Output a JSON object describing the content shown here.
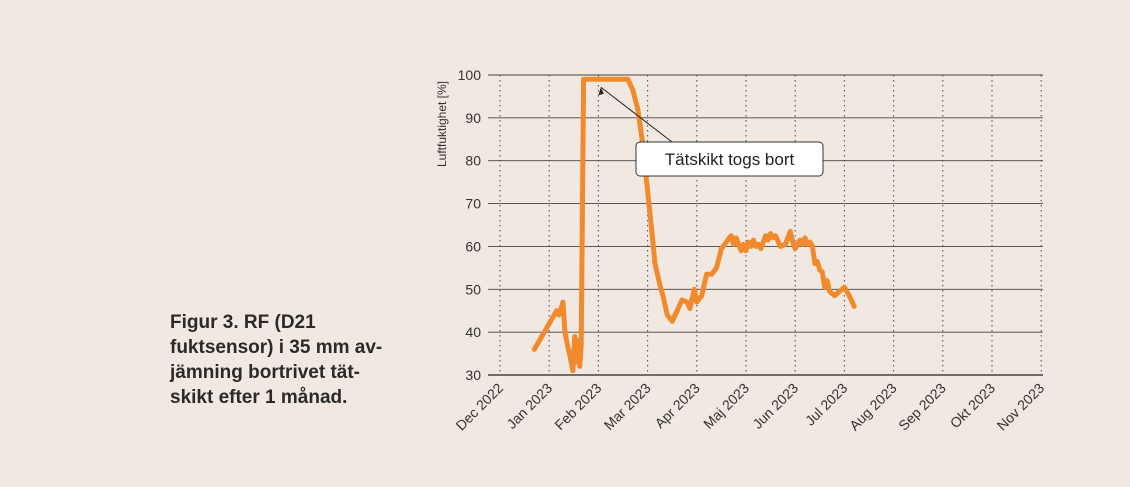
{
  "caption_lines": [
    "Figur 3. RF (D21",
    "fuktsensor) i 35 mm av-",
    "jämning bortrivet tät-",
    "skikt efter 1 månad."
  ],
  "chart_data": {
    "type": "line",
    "ylabel": "Luftfuktighet [%]",
    "ylim": [
      30,
      100
    ],
    "yticks": [
      30,
      40,
      50,
      60,
      70,
      80,
      90,
      100
    ],
    "xticks": [
      "Dec 2022",
      "Jan 2023",
      "Feb 2023",
      "Mar 2023",
      "Apr 2023",
      "Maj 2023",
      "Jun 2023",
      "Jul 2023",
      "Aug 2023",
      "Sep 2023",
      "Okt 2023",
      "Nov 2023"
    ],
    "grid": "horizontal solid, vertical dotted",
    "line_color": "#f08a2c",
    "annotation": {
      "text": "Tätskikt togs bort",
      "x": 2.05,
      "y": 99
    },
    "series": [
      {
        "points": [
          [
            0.7,
            36
          ],
          [
            0.85,
            39
          ],
          [
            1.0,
            42
          ],
          [
            1.15,
            45
          ],
          [
            1.2,
            44
          ],
          [
            1.28,
            47
          ],
          [
            1.32,
            40
          ],
          [
            1.38,
            36.5
          ],
          [
            1.42,
            34.5
          ],
          [
            1.48,
            31
          ],
          [
            1.52,
            39
          ],
          [
            1.56,
            33
          ],
          [
            1.59,
            38
          ],
          [
            1.62,
            32
          ],
          [
            1.65,
            37
          ],
          [
            1.7,
            99
          ],
          [
            1.9,
            99
          ],
          [
            2.2,
            99
          ],
          [
            2.4,
            99
          ],
          [
            2.6,
            99
          ],
          [
            2.7,
            96.5
          ],
          [
            2.8,
            92
          ],
          [
            2.9,
            84
          ],
          [
            3.0,
            73
          ],
          [
            3.1,
            62
          ],
          [
            3.15,
            56
          ],
          [
            3.25,
            51
          ],
          [
            3.3,
            49
          ],
          [
            3.4,
            44
          ],
          [
            3.5,
            42.5
          ],
          [
            3.6,
            45
          ],
          [
            3.7,
            47.5
          ],
          [
            3.8,
            47
          ],
          [
            3.86,
            45.5
          ],
          [
            3.95,
            50
          ],
          [
            4.0,
            47
          ],
          [
            4.1,
            48.5
          ],
          [
            4.2,
            53.5
          ],
          [
            4.3,
            53.5
          ],
          [
            4.4,
            55
          ],
          [
            4.5,
            59.5
          ],
          [
            4.6,
            61
          ],
          [
            4.7,
            62.5
          ],
          [
            4.75,
            60.5
          ],
          [
            4.8,
            62
          ],
          [
            4.9,
            59
          ],
          [
            4.95,
            60.5
          ],
          [
            5.0,
            59
          ],
          [
            5.05,
            61
          ],
          [
            5.1,
            60
          ],
          [
            5.15,
            61.5
          ],
          [
            5.2,
            60
          ],
          [
            5.25,
            60.5
          ],
          [
            5.3,
            59.5
          ],
          [
            5.4,
            62.5
          ],
          [
            5.45,
            61.5
          ],
          [
            5.5,
            63
          ],
          [
            5.55,
            62
          ],
          [
            5.6,
            62.5
          ],
          [
            5.7,
            60
          ],
          [
            5.8,
            60.5
          ],
          [
            5.9,
            63.5
          ],
          [
            5.95,
            61
          ],
          [
            6.0,
            59.5
          ],
          [
            6.1,
            61.5
          ],
          [
            6.15,
            60.5
          ],
          [
            6.2,
            62
          ],
          [
            6.25,
            60.5
          ],
          [
            6.3,
            61
          ],
          [
            6.35,
            60
          ],
          [
            6.4,
            56
          ],
          [
            6.45,
            56.5
          ],
          [
            6.5,
            54.5
          ],
          [
            6.55,
            54
          ],
          [
            6.6,
            50.5
          ],
          [
            6.65,
            52
          ],
          [
            6.7,
            49.5
          ],
          [
            6.8,
            48.5
          ],
          [
            6.9,
            49.5
          ],
          [
            7.0,
            50.5
          ],
          [
            7.1,
            48.5
          ],
          [
            7.2,
            46
          ]
        ]
      }
    ]
  }
}
